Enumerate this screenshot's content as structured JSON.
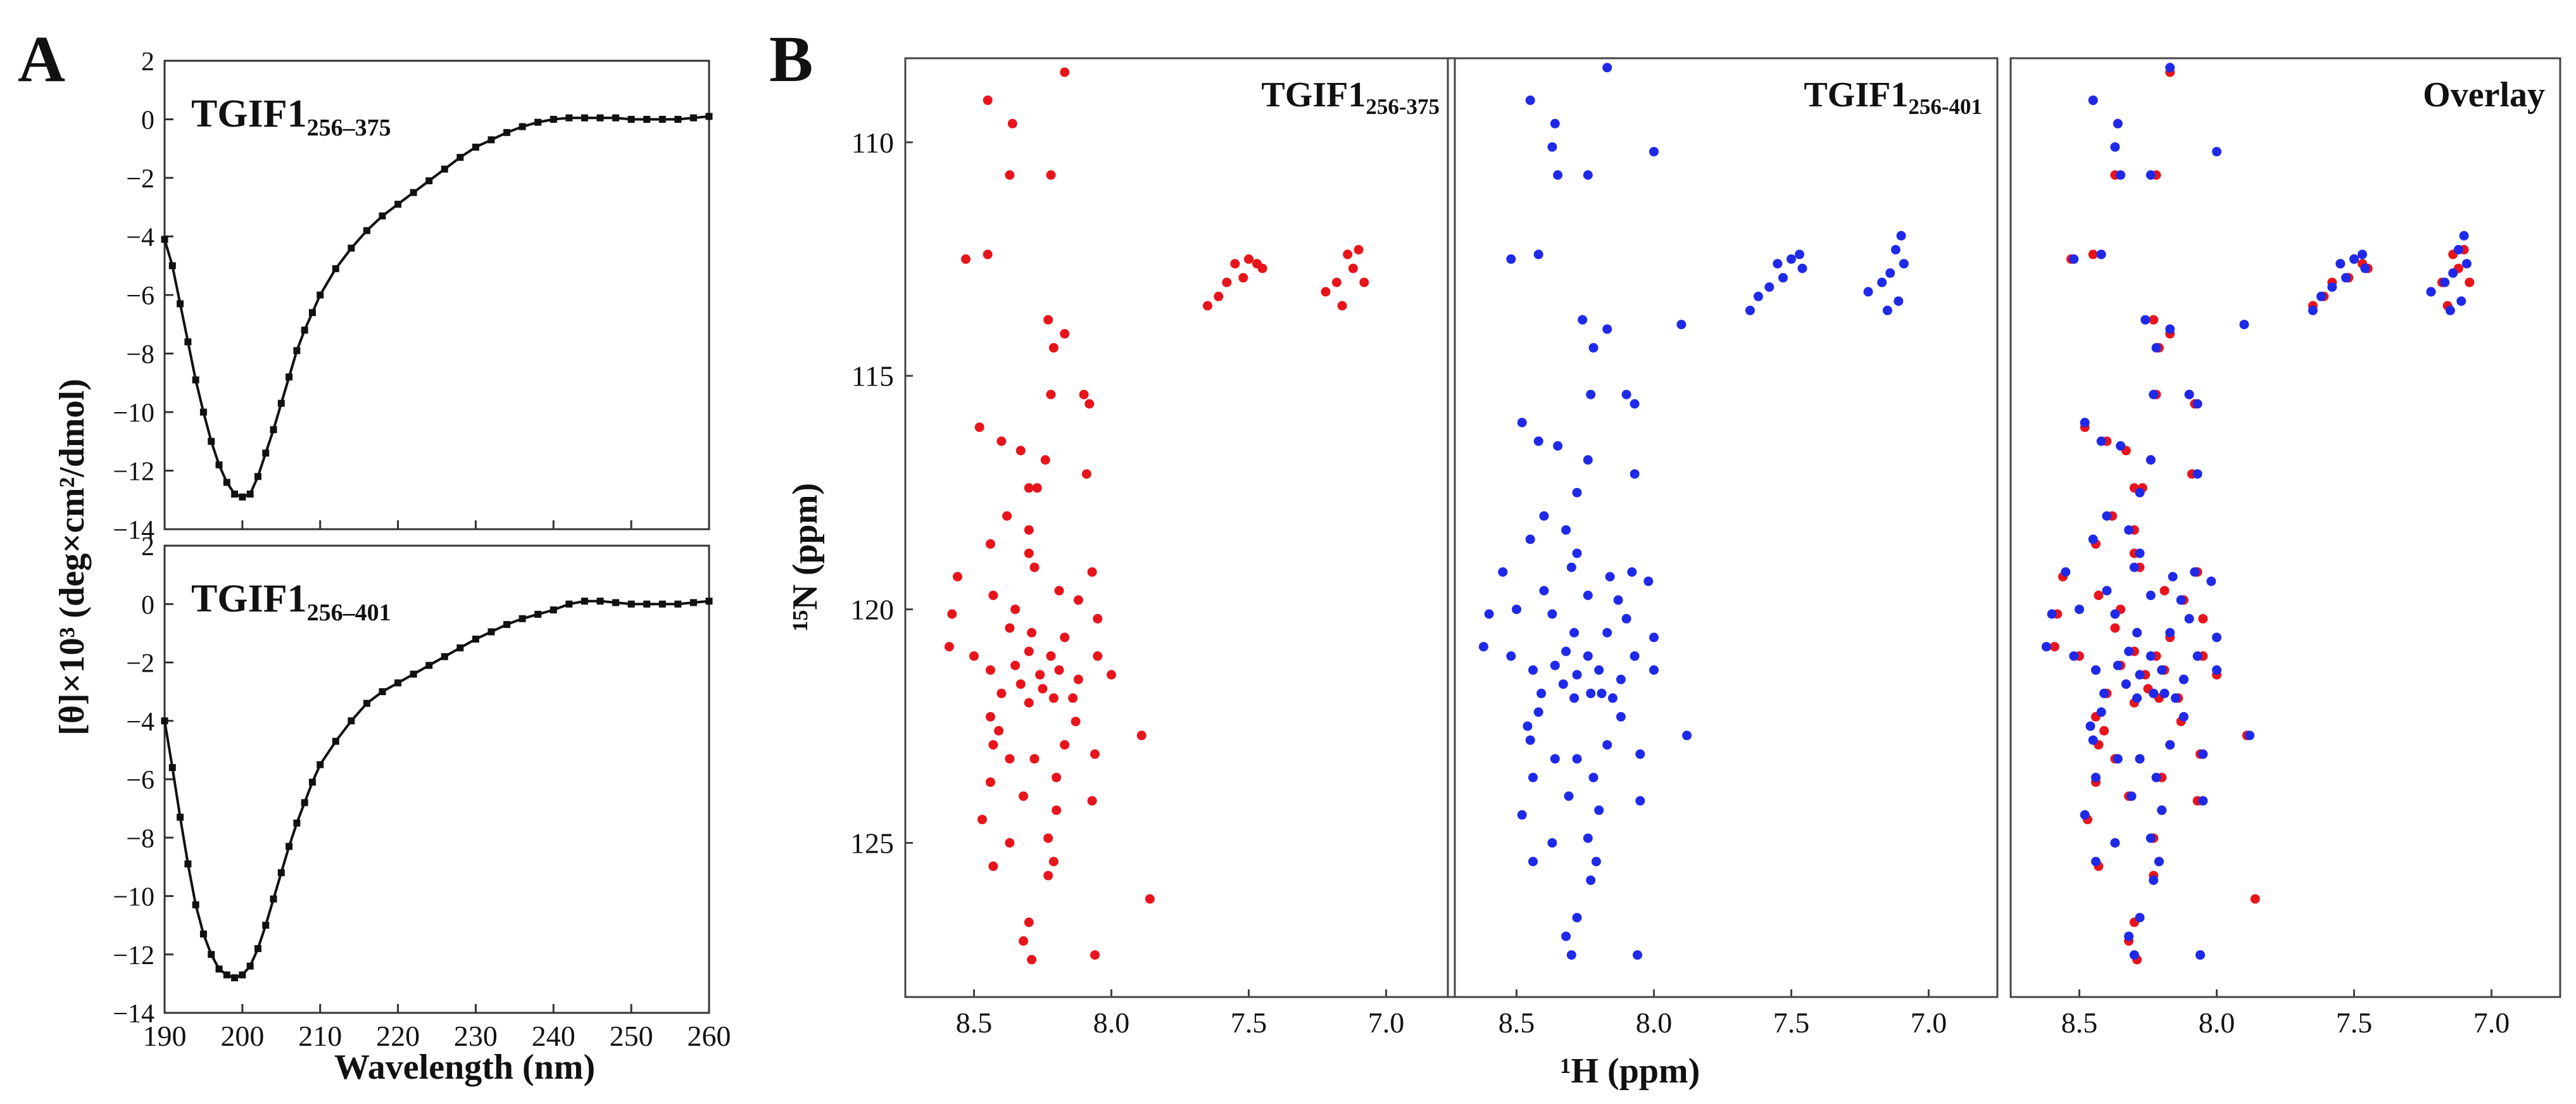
{
  "panel_labels": [
    "A",
    "B"
  ],
  "chart_data": [
    {
      "type": "line",
      "panel": "A-top",
      "title": "TGIF1",
      "title_sub": "256–375",
      "xlabel": "Wavelength (nm)",
      "ylabel": "[θ]×10³ (deg×cm²/dmol)",
      "xlim": [
        190,
        260
      ],
      "ylim": [
        -14,
        2
      ],
      "xticks": [
        190,
        200,
        210,
        220,
        230,
        240,
        250,
        260
      ],
      "yticks": [
        2,
        0,
        -2,
        -4,
        -6,
        -8,
        -10,
        -12,
        -14
      ],
      "yticklabels": [
        "2",
        "0",
        "−2",
        "−4",
        "−6",
        "−8",
        "−10",
        "−12",
        "−14"
      ],
      "series": [
        {
          "name": "TGIF1 256–375",
          "x": [
            190,
            191,
            192,
            193,
            194,
            195,
            196,
            197,
            198,
            199,
            200,
            201,
            202,
            203,
            204,
            205,
            206,
            207,
            208,
            209,
            210,
            212,
            214,
            216,
            218,
            220,
            222,
            224,
            226,
            228,
            230,
            232,
            234,
            236,
            238,
            240,
            242,
            244,
            246,
            248,
            250,
            252,
            254,
            256,
            258,
            260
          ],
          "y": [
            -4.1,
            -5.0,
            -6.3,
            -7.6,
            -8.9,
            -10.0,
            -11.0,
            -11.8,
            -12.4,
            -12.8,
            -12.9,
            -12.8,
            -12.2,
            -11.4,
            -10.6,
            -9.7,
            -8.8,
            -7.9,
            -7.2,
            -6.6,
            -6.0,
            -5.1,
            -4.4,
            -3.8,
            -3.3,
            -2.9,
            -2.5,
            -2.1,
            -1.7,
            -1.3,
            -0.95,
            -0.7,
            -0.45,
            -0.25,
            -0.1,
            0.0,
            0.05,
            0.05,
            0.05,
            0.05,
            0.0,
            0.0,
            0.0,
            0.0,
            0.05,
            0.1
          ]
        }
      ]
    },
    {
      "type": "line",
      "panel": "A-bottom",
      "title": "TGIF1",
      "title_sub": "256–401",
      "xlabel": "Wavelength (nm)",
      "ylabel": "[θ]×10³ (deg×cm²/dmol)",
      "xlim": [
        190,
        260
      ],
      "ylim": [
        -14,
        2
      ],
      "xticks": [
        190,
        200,
        210,
        220,
        230,
        240,
        250,
        260
      ],
      "yticks": [
        2,
        0,
        -2,
        -4,
        -6,
        -8,
        -10,
        -12,
        -14
      ],
      "yticklabels": [
        "2",
        "0",
        "−2",
        "−4",
        "−6",
        "−8",
        "−10",
        "−12",
        "−14"
      ],
      "series": [
        {
          "name": "TGIF1 256–401",
          "x": [
            190,
            191,
            192,
            193,
            194,
            195,
            196,
            197,
            198,
            199,
            200,
            201,
            202,
            203,
            204,
            205,
            206,
            207,
            208,
            209,
            210,
            212,
            214,
            216,
            218,
            220,
            222,
            224,
            226,
            228,
            230,
            232,
            234,
            236,
            238,
            240,
            242,
            244,
            246,
            248,
            250,
            252,
            254,
            256,
            258,
            260
          ],
          "y": [
            -4.0,
            -5.6,
            -7.3,
            -8.9,
            -10.3,
            -11.3,
            -12.0,
            -12.5,
            -12.7,
            -12.8,
            -12.7,
            -12.4,
            -11.8,
            -11.0,
            -10.1,
            -9.2,
            -8.3,
            -7.5,
            -6.8,
            -6.1,
            -5.5,
            -4.7,
            -4.0,
            -3.4,
            -3.0,
            -2.7,
            -2.4,
            -2.1,
            -1.8,
            -1.5,
            -1.2,
            -0.95,
            -0.7,
            -0.5,
            -0.35,
            -0.2,
            0.0,
            0.1,
            0.1,
            0.05,
            0.0,
            0.0,
            0.0,
            0.0,
            0.05,
            0.1
          ]
        }
      ]
    },
    {
      "type": "scatter",
      "panel": "B",
      "xlabel": "¹H (ppm)",
      "ylabel": "¹⁵N (ppm)",
      "xlim": [
        8.75,
        6.75
      ],
      "ylim": [
        108.2,
        128.3
      ],
      "xticks": [
        8.5,
        8.0,
        7.5,
        7.0
      ],
      "xticklabels": [
        "8.5",
        "8.0",
        "7.5",
        "7.0"
      ],
      "yticks": [
        110,
        115,
        120,
        125
      ],
      "colors": {
        "red": "#e8141c",
        "blue": "#1f2ae8"
      },
      "subpanels": [
        {
          "title": "TGIF1",
          "title_sub": "256-375",
          "series": [
            "red"
          ]
        },
        {
          "title": "TGIF1",
          "title_sub": "256-401",
          "series": [
            "blue"
          ]
        },
        {
          "title": "Overlay",
          "title_sub": "",
          "series": [
            "red",
            "blue"
          ]
        }
      ],
      "series": [
        {
          "name": "TGIF1 256-375",
          "color": "red",
          "points": [
            [
              8.17,
              108.5
            ],
            [
              8.36,
              109.6
            ],
            [
              8.45,
              109.1
            ],
            [
              8.22,
              110.7
            ],
            [
              8.37,
              110.7
            ],
            [
              8.53,
              112.5
            ],
            [
              8.45,
              112.4
            ],
            [
              7.55,
              112.6
            ],
            [
              7.5,
              112.5
            ],
            [
              7.47,
              112.6
            ],
            [
              7.45,
              112.7
            ],
            [
              7.52,
              112.9
            ],
            [
              7.58,
              113.0
            ],
            [
              7.61,
              113.3
            ],
            [
              7.65,
              113.5
            ],
            [
              7.1,
              112.3
            ],
            [
              7.14,
              112.4
            ],
            [
              7.12,
              112.7
            ],
            [
              7.18,
              113.0
            ],
            [
              7.08,
              113.0
            ],
            [
              7.22,
              113.2
            ],
            [
              7.16,
              113.5
            ],
            [
              8.23,
              113.8
            ],
            [
              8.17,
              114.1
            ],
            [
              8.21,
              114.4
            ],
            [
              8.1,
              115.4
            ],
            [
              8.22,
              115.4
            ],
            [
              8.08,
              115.6
            ],
            [
              8.4,
              116.4
            ],
            [
              8.48,
              116.1
            ],
            [
              8.33,
              116.6
            ],
            [
              8.24,
              116.8
            ],
            [
              8.27,
              117.4
            ],
            [
              8.3,
              117.4
            ],
            [
              8.09,
              117.1
            ],
            [
              8.38,
              118.0
            ],
            [
              8.3,
              118.3
            ],
            [
              8.44,
              118.6
            ],
            [
              8.3,
              118.8
            ],
            [
              8.56,
              119.3
            ],
            [
              8.28,
              119.1
            ],
            [
              8.07,
              119.2
            ],
            [
              8.19,
              119.6
            ],
            [
              8.43,
              119.7
            ],
            [
              8.58,
              120.1
            ],
            [
              8.35,
              120.0
            ],
            [
              8.12,
              119.8
            ],
            [
              8.05,
              120.2
            ],
            [
              8.17,
              120.6
            ],
            [
              8.29,
              120.5
            ],
            [
              8.37,
              120.4
            ],
            [
              8.22,
              121.0
            ],
            [
              8.3,
              120.9
            ],
            [
              8.05,
              121.0
            ],
            [
              8.59,
              120.8
            ],
            [
              8.5,
              121.0
            ],
            [
              8.35,
              121.2
            ],
            [
              8.44,
              121.3
            ],
            [
              8.26,
              121.4
            ],
            [
              8.19,
              121.3
            ],
            [
              8.12,
              121.5
            ],
            [
              8.0,
              121.4
            ],
            [
              8.33,
              121.6
            ],
            [
              8.25,
              121.7
            ],
            [
              8.4,
              121.8
            ],
            [
              8.14,
              121.9
            ],
            [
              8.21,
              121.9
            ],
            [
              8.3,
              122.0
            ],
            [
              8.44,
              122.3
            ],
            [
              8.41,
              122.6
            ],
            [
              8.13,
              122.4
            ],
            [
              7.89,
              122.7
            ],
            [
              8.43,
              122.9
            ],
            [
              8.37,
              123.2
            ],
            [
              8.28,
              123.2
            ],
            [
              8.17,
              122.9
            ],
            [
              8.06,
              123.1
            ],
            [
              8.2,
              123.6
            ],
            [
              8.44,
              123.7
            ],
            [
              8.32,
              124.0
            ],
            [
              8.2,
              124.3
            ],
            [
              8.07,
              124.1
            ],
            [
              8.47,
              124.5
            ],
            [
              8.23,
              124.9
            ],
            [
              8.37,
              125.0
            ],
            [
              8.21,
              125.4
            ],
            [
              8.43,
              125.5
            ],
            [
              8.23,
              125.7
            ],
            [
              7.86,
              126.2
            ],
            [
              8.3,
              126.7
            ],
            [
              8.32,
              127.1
            ],
            [
              8.29,
              127.5
            ],
            [
              8.06,
              127.4
            ]
          ]
        },
        {
          "name": "TGIF1 256-401",
          "color": "blue",
          "points": [
            [
              8.17,
              108.4
            ],
            [
              8.45,
              109.1
            ],
            [
              8.36,
              109.6
            ],
            [
              8.37,
              110.1
            ],
            [
              8.24,
              110.7
            ],
            [
              8.35,
              110.7
            ],
            [
              8.0,
              110.2
            ],
            [
              8.52,
              112.5
            ],
            [
              8.42,
              112.4
            ],
            [
              7.55,
              112.6
            ],
            [
              7.5,
              112.5
            ],
            [
              7.47,
              112.4
            ],
            [
              7.46,
              112.7
            ],
            [
              7.53,
              112.9
            ],
            [
              7.58,
              113.1
            ],
            [
              7.62,
              113.3
            ],
            [
              7.65,
              113.6
            ],
            [
              7.1,
              112.0
            ],
            [
              7.12,
              112.3
            ],
            [
              7.09,
              112.6
            ],
            [
              7.14,
              112.8
            ],
            [
              7.17,
              113.0
            ],
            [
              7.22,
              113.2
            ],
            [
              7.11,
              113.4
            ],
            [
              7.15,
              113.6
            ],
            [
              8.26,
              113.8
            ],
            [
              7.9,
              113.9
            ],
            [
              8.17,
              114.0
            ],
            [
              8.22,
              114.4
            ],
            [
              8.1,
              115.4
            ],
            [
              8.23,
              115.4
            ],
            [
              8.07,
              115.6
            ],
            [
              8.48,
              116.0
            ],
            [
              8.42,
              116.4
            ],
            [
              8.35,
              116.5
            ],
            [
              8.24,
              116.8
            ],
            [
              8.28,
              117.5
            ],
            [
              8.07,
              117.1
            ],
            [
              8.4,
              118.0
            ],
            [
              8.32,
              118.3
            ],
            [
              8.45,
              118.5
            ],
            [
              8.28,
              118.8
            ],
            [
              8.55,
              119.2
            ],
            [
              8.3,
              119.1
            ],
            [
              8.16,
              119.3
            ],
            [
              8.08,
              119.2
            ],
            [
              8.02,
              119.4
            ],
            [
              8.4,
              119.6
            ],
            [
              8.24,
              119.7
            ],
            [
              8.5,
              120.0
            ],
            [
              8.6,
              120.1
            ],
            [
              8.37,
              120.1
            ],
            [
              8.13,
              119.8
            ],
            [
              8.1,
              120.2
            ],
            [
              8.17,
              120.5
            ],
            [
              8.29,
              120.5
            ],
            [
              8.0,
              120.6
            ],
            [
              8.24,
              121.0
            ],
            [
              8.32,
              120.9
            ],
            [
              8.07,
              121.0
            ],
            [
              8.62,
              120.8
            ],
            [
              8.52,
              121.0
            ],
            [
              8.36,
              121.2
            ],
            [
              8.44,
              121.3
            ],
            [
              8.28,
              121.4
            ],
            [
              8.2,
              121.3
            ],
            [
              8.12,
              121.5
            ],
            [
              8.0,
              121.3
            ],
            [
              8.33,
              121.6
            ],
            [
              8.23,
              121.8
            ],
            [
              8.41,
              121.8
            ],
            [
              8.15,
              121.9
            ],
            [
              8.19,
              121.8
            ],
            [
              8.29,
              121.9
            ],
            [
              8.42,
              122.2
            ],
            [
              8.46,
              122.5
            ],
            [
              8.12,
              122.3
            ],
            [
              7.88,
              122.7
            ],
            [
              8.45,
              122.8
            ],
            [
              8.36,
              123.2
            ],
            [
              8.28,
              123.2
            ],
            [
              8.17,
              122.9
            ],
            [
              8.05,
              123.1
            ],
            [
              8.22,
              123.6
            ],
            [
              8.44,
              123.6
            ],
            [
              8.31,
              124.0
            ],
            [
              8.2,
              124.3
            ],
            [
              8.05,
              124.1
            ],
            [
              8.48,
              124.4
            ],
            [
              8.24,
              124.9
            ],
            [
              8.37,
              125.0
            ],
            [
              8.21,
              125.4
            ],
            [
              8.44,
              125.4
            ],
            [
              8.23,
              125.8
            ],
            [
              8.28,
              126.6
            ],
            [
              8.32,
              127.0
            ],
            [
              8.3,
              127.4
            ],
            [
              8.06,
              127.4
            ]
          ]
        }
      ]
    }
  ]
}
